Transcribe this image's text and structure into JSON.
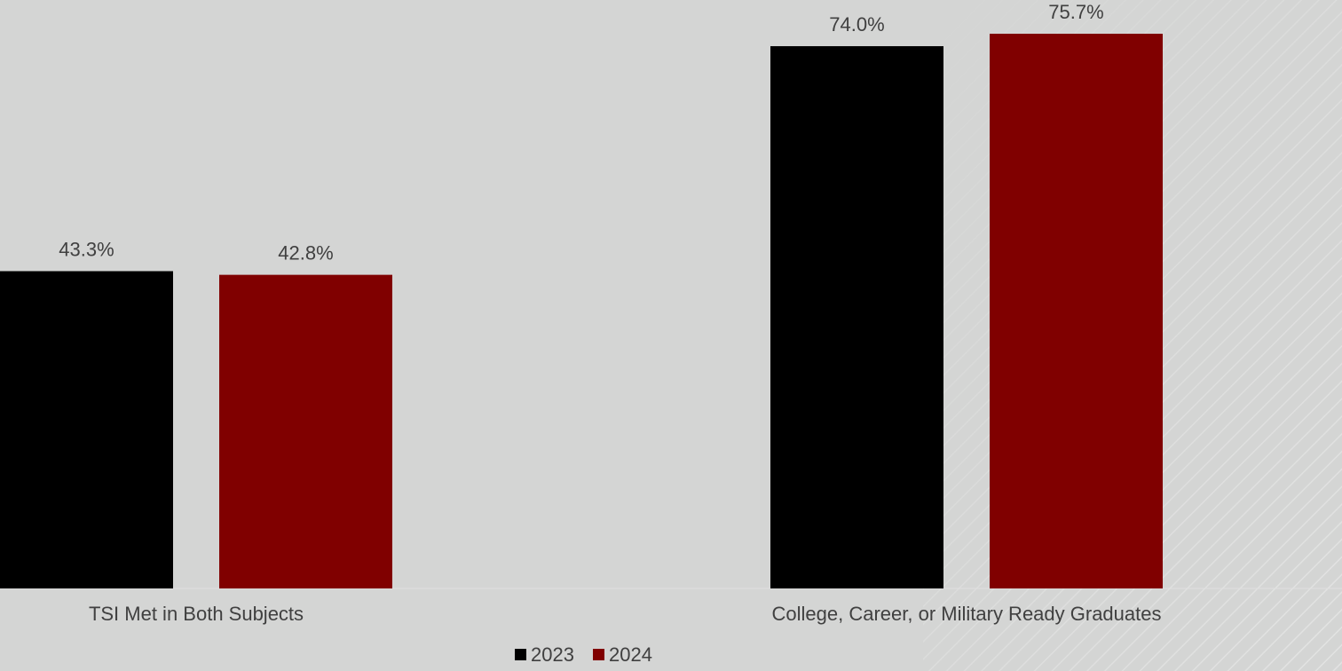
{
  "chart_data": {
    "type": "bar",
    "categories": [
      "TSI Met in Both Subjects",
      "College, Career, or Military Ready Graduates"
    ],
    "series": [
      {
        "name": "2023",
        "values": [
          43.3,
          74.0
        ],
        "labels": [
          "43.3%",
          "74.0%"
        ],
        "color": "#000000"
      },
      {
        "name": "2024",
        "values": [
          42.8,
          75.7
        ],
        "labels": [
          "42.8%",
          "75.7%"
        ],
        "color": "#800000"
      }
    ],
    "ylim": [
      0,
      80
    ],
    "legend_position": "bottom",
    "grid": false
  },
  "colors": {
    "background": "#d4d5d4",
    "text": "#404040",
    "series_2023": "#000000",
    "series_2024": "#800000"
  }
}
